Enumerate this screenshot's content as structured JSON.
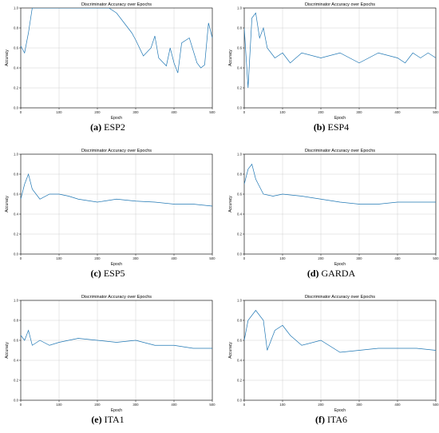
{
  "figure": {
    "panels": [
      {
        "id": "a",
        "letter": "(a)",
        "name": "ESP2",
        "title": "Discriminator Accuracy over Epochs",
        "xlabel": "Epoch",
        "ylabel": "Accuracy",
        "xticks": [
          "0",
          "100",
          "200",
          "300",
          "400",
          "500"
        ],
        "yticks": [
          "0.0",
          "0.2",
          "0.4",
          "0.6",
          "0.8",
          "1.0"
        ]
      },
      {
        "id": "b",
        "letter": "(b)",
        "name": "ESP4",
        "title": "Discriminator Accuracy over Epochs",
        "xlabel": "Epoch",
        "ylabel": "Accuracy",
        "xticks": [
          "0",
          "100",
          "200",
          "300",
          "400",
          "500"
        ],
        "yticks": [
          "0.0",
          "0.2",
          "0.4",
          "0.6",
          "0.8",
          "1.0"
        ]
      },
      {
        "id": "c",
        "letter": "(c)",
        "name": "ESP5",
        "title": "Discriminator Accuracy over Epochs",
        "xlabel": "Epoch",
        "ylabel": "Accuracy",
        "xticks": [
          "0",
          "100",
          "200",
          "300",
          "400",
          "500"
        ],
        "yticks": [
          "0.0",
          "0.2",
          "0.4",
          "0.6",
          "0.8",
          "1.0"
        ]
      },
      {
        "id": "d",
        "letter": "(d)",
        "name": "GARDA",
        "title": "Discriminator Accuracy over Epochs",
        "xlabel": "Epoch",
        "ylabel": "Accuracy",
        "xticks": [
          "0",
          "100",
          "200",
          "300",
          "400",
          "500"
        ],
        "yticks": [
          "0.0",
          "0.2",
          "0.4",
          "0.6",
          "0.8",
          "1.0"
        ]
      },
      {
        "id": "e",
        "letter": "(e)",
        "name": "ITA1",
        "title": "Discriminator Accuracy over Epochs",
        "xlabel": "Epoch",
        "ylabel": "Accuracy",
        "xticks": [
          "0",
          "100",
          "200",
          "300",
          "400",
          "500"
        ],
        "yticks": [
          "0.0",
          "0.2",
          "0.4",
          "0.6",
          "0.8",
          "1.0"
        ]
      },
      {
        "id": "f",
        "letter": "(f)",
        "name": "ITA6",
        "title": "Discriminator Accuracy over Epochs",
        "xlabel": "Epoch",
        "ylabel": "Accuracy",
        "xticks": [
          "0",
          "100",
          "200",
          "300",
          "400",
          "500"
        ],
        "yticks": [
          "0.0",
          "0.2",
          "0.4",
          "0.6",
          "0.8",
          "1.0"
        ]
      }
    ]
  },
  "chart_data": [
    {
      "type": "line",
      "title": "Discriminator Accuracy over Epochs",
      "xlabel": "Epoch",
      "ylabel": "Accuracy",
      "xlim": [
        0,
        500
      ],
      "ylim": [
        0,
        1.0
      ],
      "grid": true,
      "color": "#1f77b4",
      "x": [
        0,
        10,
        20,
        30,
        40,
        50,
        100,
        150,
        200,
        230,
        250,
        270,
        290,
        300,
        320,
        340,
        350,
        360,
        380,
        390,
        400,
        410,
        420,
        440,
        460,
        470,
        480,
        490,
        500
      ],
      "y": [
        0.62,
        0.55,
        0.75,
        1.0,
        1.0,
        1.0,
        1.0,
        1.0,
        1.0,
        1.0,
        0.95,
        0.85,
        0.75,
        0.68,
        0.52,
        0.6,
        0.72,
        0.5,
        0.42,
        0.6,
        0.45,
        0.35,
        0.65,
        0.7,
        0.45,
        0.4,
        0.43,
        0.85,
        0.7
      ]
    },
    {
      "type": "line",
      "title": "Discriminator Accuracy over Epochs",
      "xlabel": "Epoch",
      "ylabel": "Accuracy",
      "xlim": [
        0,
        500
      ],
      "ylim": [
        0,
        1.0
      ],
      "grid": true,
      "color": "#1f77b4",
      "x": [
        0,
        10,
        20,
        30,
        40,
        50,
        60,
        80,
        100,
        120,
        150,
        200,
        250,
        300,
        350,
        400,
        420,
        440,
        460,
        480,
        500
      ],
      "y": [
        0.8,
        0.2,
        0.9,
        0.95,
        0.7,
        0.8,
        0.6,
        0.5,
        0.55,
        0.45,
        0.55,
        0.5,
        0.55,
        0.45,
        0.55,
        0.5,
        0.45,
        0.55,
        0.5,
        0.55,
        0.5
      ]
    },
    {
      "type": "line",
      "title": "Discriminator Accuracy over Epochs",
      "xlabel": "Epoch",
      "ylabel": "Accuracy",
      "xlim": [
        0,
        500
      ],
      "ylim": [
        0,
        1.0
      ],
      "grid": true,
      "color": "#1f77b4",
      "x": [
        0,
        10,
        20,
        30,
        50,
        75,
        100,
        125,
        150,
        200,
        250,
        300,
        350,
        400,
        450,
        500
      ],
      "y": [
        0.55,
        0.7,
        0.8,
        0.65,
        0.55,
        0.6,
        0.6,
        0.58,
        0.55,
        0.52,
        0.55,
        0.53,
        0.52,
        0.5,
        0.5,
        0.48
      ]
    },
    {
      "type": "line",
      "title": "Discriminator Accuracy over Epochs",
      "xlabel": "Epoch",
      "ylabel": "Accuracy",
      "xlim": [
        0,
        500
      ],
      "ylim": [
        0,
        1.0
      ],
      "grid": true,
      "color": "#1f77b4",
      "x": [
        0,
        10,
        20,
        30,
        50,
        75,
        100,
        150,
        200,
        250,
        300,
        350,
        400,
        450,
        500
      ],
      "y": [
        0.7,
        0.85,
        0.9,
        0.75,
        0.6,
        0.58,
        0.6,
        0.58,
        0.55,
        0.52,
        0.5,
        0.5,
        0.52,
        0.52,
        0.52
      ]
    },
    {
      "type": "line",
      "title": "Discriminator Accuracy over Epochs",
      "xlabel": "Epoch",
      "ylabel": "Accuracy",
      "xlim": [
        0,
        500
      ],
      "ylim": [
        0,
        1.0
      ],
      "grid": true,
      "color": "#1f77b4",
      "x": [
        0,
        10,
        20,
        30,
        50,
        75,
        100,
        150,
        200,
        250,
        300,
        350,
        400,
        450,
        500
      ],
      "y": [
        0.65,
        0.6,
        0.7,
        0.55,
        0.6,
        0.55,
        0.58,
        0.62,
        0.6,
        0.58,
        0.6,
        0.55,
        0.55,
        0.52,
        0.52
      ]
    },
    {
      "type": "line",
      "title": "Discriminator Accuracy over Epochs",
      "xlabel": "Epoch",
      "ylabel": "Accuracy",
      "xlim": [
        0,
        500
      ],
      "ylim": [
        0,
        1.0
      ],
      "grid": true,
      "color": "#1f77b4",
      "x": [
        0,
        10,
        20,
        30,
        50,
        60,
        80,
        100,
        120,
        150,
        200,
        250,
        300,
        350,
        400,
        450,
        500
      ],
      "y": [
        0.6,
        0.8,
        0.85,
        0.9,
        0.8,
        0.5,
        0.7,
        0.75,
        0.65,
        0.55,
        0.6,
        0.48,
        0.5,
        0.52,
        0.52,
        0.52,
        0.5
      ]
    }
  ]
}
